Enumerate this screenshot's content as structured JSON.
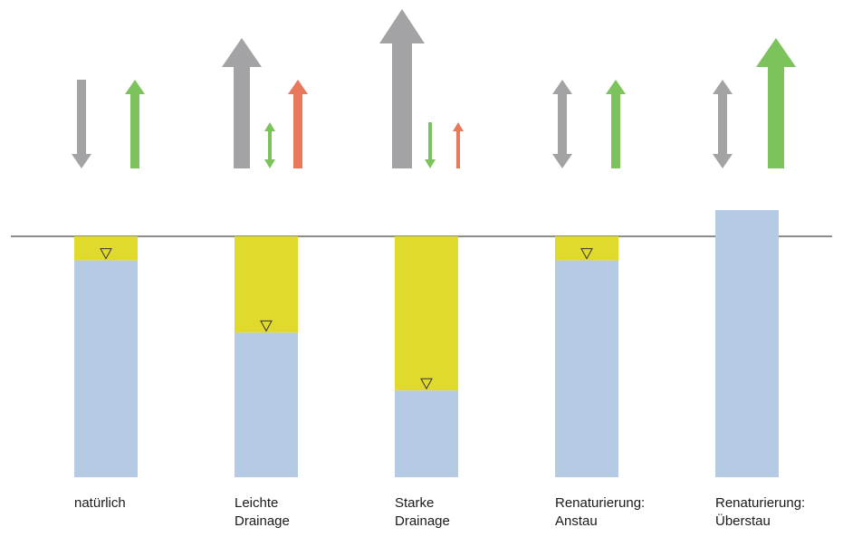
{
  "colors": {
    "co2_arrow": "#a3a3a6",
    "ch4_arrow": "#7cc35b",
    "n2o_arrow": "#e9775a",
    "water_column": "#b4cbe3",
    "dry_column": "#e0da2d",
    "ground_line": "#1a1a1a",
    "water_marker": "#333333"
  },
  "scenarios": [
    {
      "id": "natuerlich",
      "label_lines": [
        "natürlich",
        ""
      ],
      "water_level_rel": 0.1,
      "overflow": false,
      "arrows": [
        {
          "gas": "co2",
          "direction": "down",
          "size": "medium"
        },
        {
          "gas": "ch4",
          "direction": "up",
          "size": "medium"
        }
      ]
    },
    {
      "id": "leichte-drainage",
      "label_lines": [
        "Leichte",
        "Drainage"
      ],
      "water_level_rel": 0.4,
      "overflow": false,
      "arrows": [
        {
          "gas": "co2",
          "direction": "up",
          "size": "large"
        },
        {
          "gas": "ch4",
          "direction": "both",
          "size": "small"
        },
        {
          "gas": "n2o",
          "direction": "up",
          "size": "medium"
        }
      ]
    },
    {
      "id": "starke-drainage",
      "label_lines": [
        "Starke",
        "Drainage"
      ],
      "water_level_rel": 0.64,
      "overflow": false,
      "arrows": [
        {
          "gas": "co2",
          "direction": "up",
          "size": "xlarge"
        },
        {
          "gas": "ch4",
          "direction": "down",
          "size": "small"
        },
        {
          "gas": "n2o",
          "direction": "up",
          "size": "small"
        }
      ]
    },
    {
      "id": "renaturierung-anstau",
      "label_lines": [
        "Renaturierung:",
        "Anstau"
      ],
      "water_level_rel": 0.1,
      "overflow": false,
      "arrows": [
        {
          "gas": "co2",
          "direction": "both",
          "size": "medium"
        },
        {
          "gas": "ch4",
          "direction": "up",
          "size": "medium"
        }
      ]
    },
    {
      "id": "renaturierung-ueberstau",
      "label_lines": [
        "Renaturierung:",
        "Überstau"
      ],
      "water_level_rel": 0.0,
      "overflow": true,
      "arrows": [
        {
          "gas": "co2",
          "direction": "both",
          "size": "medium"
        },
        {
          "gas": "ch4",
          "direction": "up",
          "size": "large"
        }
      ]
    }
  ]
}
